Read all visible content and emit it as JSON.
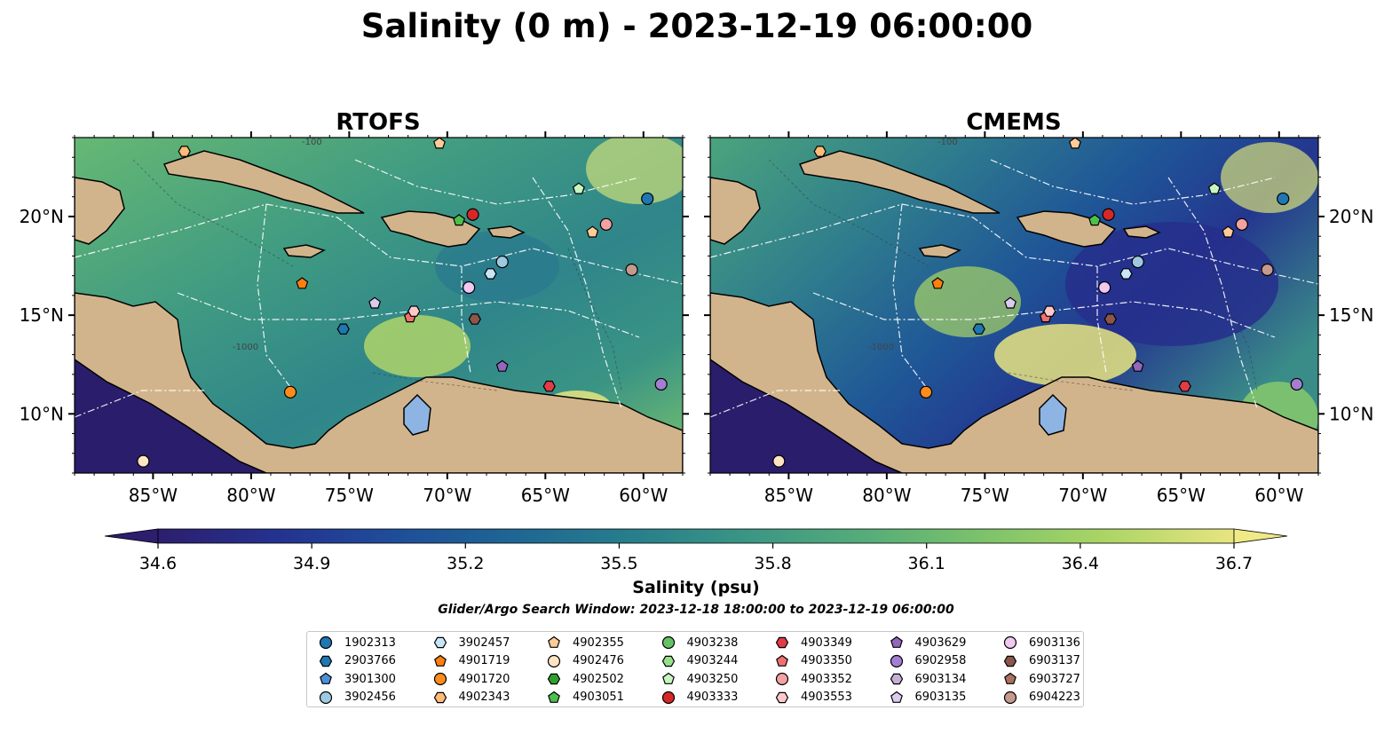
{
  "figure": {
    "title": "Salinity (0 m) - 2023-12-19 06:00:00"
  },
  "chart_data": [
    {
      "type": "heatmap",
      "title": "RTOFS",
      "x_ticks": [
        "85°W",
        "80°W",
        "75°W",
        "70°W",
        "65°W",
        "60°W"
      ],
      "y_ticks": [
        "20°N",
        "15°N",
        "10°N"
      ],
      "xlim": [
        -89,
        -58
      ],
      "ylim": [
        7,
        24
      ]
    },
    {
      "type": "heatmap",
      "title": "CMEMS",
      "x_ticks": [
        "85°W",
        "80°W",
        "75°W",
        "70°W",
        "65°W",
        "60°W"
      ],
      "y_ticks": [
        "20°N",
        "15°N",
        "10°N"
      ],
      "xlim": [
        -89,
        -58
      ],
      "ylim": [
        7,
        24
      ]
    }
  ],
  "colorbar": {
    "ticks": [
      "34.6",
      "34.9",
      "35.2",
      "35.5",
      "35.8",
      "36.1",
      "36.4",
      "36.7"
    ],
    "range": [
      34.6,
      36.7
    ],
    "label": "Salinity (psu)",
    "colors": [
      "#2d1e6e",
      "#24328f",
      "#1f4d99",
      "#1e6694",
      "#277e8c",
      "#3b9684",
      "#56ad79",
      "#7dc36a",
      "#abd565",
      "#e8e580"
    ]
  },
  "search_window": "Glider/Argo Search Window: 2023-12-18 18:00:00 to 2023-12-19 06:00:00",
  "contour_labels": [
    "-100",
    "-1000"
  ],
  "legend": [
    {
      "id": "1902313",
      "marker": "circle",
      "color": "#1f77b4"
    },
    {
      "id": "2903766",
      "marker": "hexagon",
      "color": "#1f77b4"
    },
    {
      "id": "3901300",
      "marker": "pentagon",
      "color": "#4a90d9"
    },
    {
      "id": "3902456",
      "marker": "circle",
      "color": "#9ecae1"
    },
    {
      "id": "3902457",
      "marker": "hexagon",
      "color": "#c6e5f7"
    },
    {
      "id": "4901719",
      "marker": "pentagon",
      "color": "#ff7f0e"
    },
    {
      "id": "4901720",
      "marker": "circle",
      "color": "#ff8c1a"
    },
    {
      "id": "4902343",
      "marker": "hexagon",
      "color": "#ffbb78"
    },
    {
      "id": "4902355",
      "marker": "pentagon",
      "color": "#ffcc99"
    },
    {
      "id": "4902476",
      "marker": "circle",
      "color": "#ffe4c4"
    },
    {
      "id": "4902502",
      "marker": "hexagon",
      "color": "#2ca02c"
    },
    {
      "id": "4903051",
      "marker": "pentagon",
      "color": "#4cbf4c"
    },
    {
      "id": "4903238",
      "marker": "circle",
      "color": "#66c266"
    },
    {
      "id": "4903244",
      "marker": "hexagon",
      "color": "#98df8a"
    },
    {
      "id": "4903250",
      "marker": "pentagon",
      "color": "#c7f5c0"
    },
    {
      "id": "4903333",
      "marker": "circle",
      "color": "#d62728"
    },
    {
      "id": "4903349",
      "marker": "hexagon",
      "color": "#e03c45"
    },
    {
      "id": "4903350",
      "marker": "pentagon",
      "color": "#f07070"
    },
    {
      "id": "4903352",
      "marker": "circle",
      "color": "#f4a1a1"
    },
    {
      "id": "4903553",
      "marker": "hexagon",
      "color": "#ffc9c9"
    },
    {
      "id": "4903629",
      "marker": "pentagon",
      "color": "#9467bd"
    },
    {
      "id": "6902958",
      "marker": "circle",
      "color": "#a37ed1"
    },
    {
      "id": "6903134",
      "marker": "hexagon",
      "color": "#c5b0d5"
    },
    {
      "id": "6903135",
      "marker": "pentagon",
      "color": "#dccbf0"
    },
    {
      "id": "6903136",
      "marker": "circle",
      "color": "#f0c8f0"
    },
    {
      "id": "6903137",
      "marker": "hexagon",
      "color": "#8c564b"
    },
    {
      "id": "6903727",
      "marker": "pentagon",
      "color": "#a9715f"
    },
    {
      "id": "6904223",
      "marker": "circle",
      "color": "#c49a8c"
    }
  ],
  "platforms": [
    {
      "id": "1902313",
      "lon": -59.8,
      "lat": 20.9
    },
    {
      "id": "2903766",
      "lon": -75.3,
      "lat": 14.3
    },
    {
      "id": "3902457",
      "lon": -67.8,
      "lat": 17.1
    },
    {
      "id": "3902456",
      "lon": -67.2,
      "lat": 17.7
    },
    {
      "id": "4901719",
      "lon": -77.4,
      "lat": 16.6
    },
    {
      "id": "4901720",
      "lon": -78.0,
      "lat": 11.1
    },
    {
      "id": "4902355",
      "lon": -70.4,
      "lat": 23.7
    },
    {
      "id": "4902343",
      "lon": -83.4,
      "lat": 23.3
    },
    {
      "id": "4902476",
      "lon": -85.5,
      "lat": 7.6
    },
    {
      "id": "4903051",
      "lon": -69.4,
      "lat": 19.8
    },
    {
      "id": "4903250",
      "lon": -63.3,
      "lat": 21.4
    },
    {
      "id": "4903333",
      "lon": -68.7,
      "lat": 20.1
    },
    {
      "id": "4903352",
      "lon": -61.9,
      "lat": 19.6
    },
    {
      "id": "4903350",
      "lon": -71.9,
      "lat": 14.9
    },
    {
      "id": "4903553",
      "lon": -71.7,
      "lat": 15.2
    },
    {
      "id": "4903349",
      "lon": -64.8,
      "lat": 11.4
    },
    {
      "id": "4903629",
      "lon": -67.2,
      "lat": 12.4
    },
    {
      "id": "6903135",
      "lon": -73.7,
      "lat": 15.6
    },
    {
      "id": "6903136",
      "lon": -68.9,
      "lat": 16.4
    },
    {
      "id": "6903137",
      "lon": -68.6,
      "lat": 14.8
    },
    {
      "id": "4902355b",
      "lon": -62.6,
      "lat": 19.2
    },
    {
      "id": "6904223",
      "lon": -60.6,
      "lat": 17.3
    },
    {
      "id": "6902958",
      "lon": -59.1,
      "lat": 11.5
    }
  ]
}
